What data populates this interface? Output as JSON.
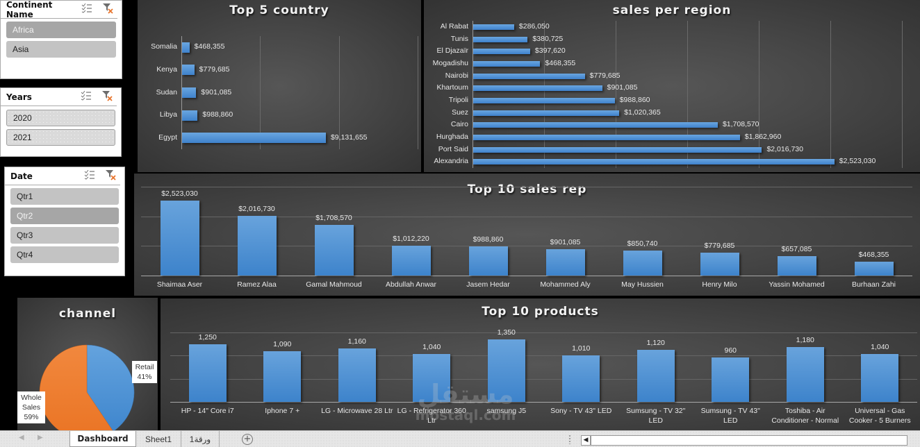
{
  "slicers": {
    "continent": {
      "title": "Continent Name",
      "items": [
        {
          "label": "Africa",
          "selected": true
        },
        {
          "label": "Asia",
          "selected": false
        }
      ]
    },
    "years": {
      "title": "Years",
      "items": [
        {
          "label": "2020",
          "selected": false
        },
        {
          "label": "2021",
          "selected": false
        }
      ]
    },
    "date": {
      "title": "Date",
      "items": [
        {
          "label": "Qtr1",
          "selected": false
        },
        {
          "label": "Qtr2",
          "selected": true
        },
        {
          "label": "Qtr3",
          "selected": false
        },
        {
          "label": "Qtr4",
          "selected": false
        }
      ]
    },
    "icons": {
      "multiselect": "multi-select-icon",
      "clear_filter": "clear-filter-icon"
    }
  },
  "colors": {
    "bar": "#4a8fd6",
    "pie_retail": "#5b9bd5",
    "pie_wholesale": "#ed7d31",
    "panel_bg": "#474747"
  },
  "chart_data": [
    {
      "id": "top5_country",
      "type": "bar",
      "orientation": "horizontal",
      "title": "Top  5 country",
      "categories": [
        "Somalia",
        "Kenya",
        "Sudan",
        "Libya",
        "Egypt"
      ],
      "values": [
        468355,
        779685,
        901085,
        988860,
        9131655
      ],
      "labels": [
        "$468,355",
        "$779,685",
        "$901,085",
        "$988,860",
        "$9,131,655"
      ],
      "xlim": [
        0,
        15000000
      ],
      "grid": true
    },
    {
      "id": "sales_per_region",
      "type": "bar",
      "orientation": "horizontal",
      "title": "sales per region",
      "categories": [
        "Al Rabat",
        "Tunis",
        "El Djazaïr",
        "Mogadishu",
        "Nairobi",
        "Khartoum",
        "Tripoli",
        "Suez",
        "Cairo",
        "Hurghada",
        "Port Said",
        "Alexandria"
      ],
      "values": [
        286050,
        380725,
        397620,
        468355,
        779685,
        901085,
        988860,
        1020365,
        1708570,
        1862960,
        2016730,
        2523030
      ],
      "labels": [
        "$286,050",
        "$380,725",
        "$397,620",
        "$468,355",
        "$779,685",
        "$901,085",
        "$988,860",
        "$1,020,365",
        "$1,708,570",
        "$1,862,960",
        "$2,016,730",
        "$2,523,030"
      ],
      "xlim": [
        0,
        3000000
      ],
      "grid": true
    },
    {
      "id": "top10_sales_rep",
      "type": "bar",
      "orientation": "vertical",
      "title": "Top  10 sales rep",
      "categories": [
        "Shaimaa Aser",
        "Ramez Alaa",
        "Gamal Mahmoud",
        "Abdullah Anwar",
        "Jasem Hedar",
        "Mohammed Aly",
        "May Hussien",
        "Henry Milo",
        "Yassin Mohamed",
        "Burhaan Zahi"
      ],
      "values": [
        2523030,
        2016730,
        1708570,
        1012220,
        988860,
        901085,
        850740,
        779685,
        657085,
        468355
      ],
      "labels": [
        "$2,523,030",
        "$2,016,730",
        "$1,708,570",
        "$1,012,220",
        "$988,860",
        "$901,085",
        "$850,740",
        "$779,685",
        "$657,085",
        "$468,355"
      ],
      "ylim": [
        0,
        3000000
      ],
      "grid": true
    },
    {
      "id": "top10_products",
      "type": "bar",
      "orientation": "vertical",
      "title": "Top  10 products",
      "categories": [
        "HP - 14\" Core i7",
        "Iphone 7 +",
        "LG - Microwave 28 Ltr",
        "LG - Refrigerator 360 Ltr",
        "samsung J5",
        "Sony - TV 43\" LED",
        "Sumsung - TV 32\" LED",
        "Sumsung - TV 43\" LED",
        "Toshiba - Air Conditioner - Normal",
        "Universal - Gas Cooker - 5 Burners"
      ],
      "values": [
        1250,
        1090,
        1160,
        1040,
        1350,
        1010,
        1120,
        960,
        1180,
        1040
      ],
      "labels": [
        "1,250",
        "1,090",
        "1,160",
        "1,040",
        "1,350",
        "1,010",
        "1,120",
        "960",
        "1,180",
        "1,040"
      ],
      "ylim": [
        0,
        1500
      ],
      "grid": true
    },
    {
      "id": "channel",
      "type": "pie",
      "title": "channel",
      "categories": [
        "Retail",
        "Whole Sales"
      ],
      "values": [
        41,
        59
      ],
      "labels": [
        "Retail\n41%",
        "Whole\nSales\n59%"
      ]
    }
  ],
  "pie_labels": {
    "retail_name": "Retail",
    "retail_pct": "41%",
    "wholesale_name_1": "Whole",
    "wholesale_name_2": "Sales",
    "wholesale_pct": "59%"
  },
  "sheet_tabs": [
    {
      "label": "Dashboard",
      "active": true
    },
    {
      "label": "Sheet1",
      "active": false
    },
    {
      "label": "ورقة1",
      "active": false
    }
  ],
  "add_sheet_label": "+",
  "watermark": {
    "line1": "مستقل",
    "line2": "mostaql.com"
  }
}
